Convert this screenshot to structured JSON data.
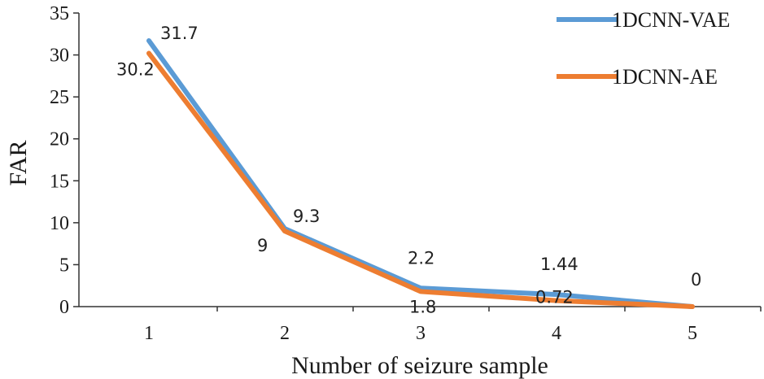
{
  "chart_data": {
    "type": "line",
    "title": "",
    "xlabel": "Number of seizure sample",
    "ylabel": "FAR",
    "x": [
      1,
      2,
      3,
      4,
      5
    ],
    "xticks": [
      "1",
      "2",
      "3",
      "4",
      "5"
    ],
    "yticks": [
      "0",
      "5",
      "10",
      "15",
      "20",
      "25",
      "30",
      "35"
    ],
    "ylim": [
      0,
      35
    ],
    "grid": false,
    "legend_position": "top-right",
    "series": [
      {
        "name": "1DCNN-VAE",
        "color": "#5b9bd5",
        "values": [
          31.7,
          9.3,
          2.2,
          1.44,
          0
        ],
        "labels": [
          "31.7",
          "9.3",
          "2.2",
          "1.44",
          "0"
        ]
      },
      {
        "name": "1DCNN-AE",
        "color": "#ed7d31",
        "values": [
          30.2,
          9,
          1.8,
          0.72,
          0
        ],
        "labels": [
          "30.2",
          "9",
          "1.8",
          "0.72",
          ""
        ]
      }
    ]
  }
}
